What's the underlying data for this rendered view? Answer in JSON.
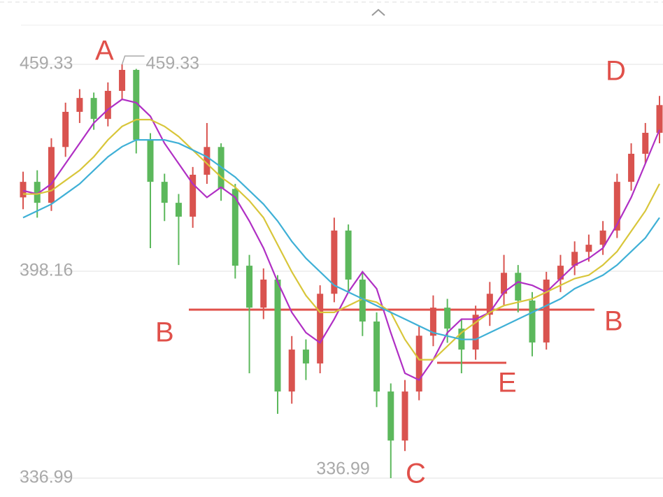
{
  "chart_data": {
    "type": "candlestick",
    "categories": [
      null,
      null,
      null,
      null,
      null,
      null,
      null,
      null,
      null,
      null,
      null,
      null,
      null,
      null,
      null,
      null,
      null,
      null,
      null,
      null,
      null,
      null,
      null,
      null,
      null,
      null,
      null,
      null,
      null,
      null,
      null,
      null,
      null,
      null,
      null,
      null,
      null,
      null,
      null,
      null,
      null,
      null,
      null,
      null,
      null,
      null
    ],
    "open": [
      420.0,
      424.6,
      418.4,
      434.9,
      445.3,
      449.4,
      443.2,
      451.5,
      457.7,
      437.0,
      424.6,
      418.4,
      414.3,
      426.7,
      434.9,
      422.5,
      399.8,
      387.4,
      395.7,
      362.6,
      375.0,
      370.9,
      391.5,
      410.2,
      395.7,
      383.3,
      362.6,
      348.1,
      362.6,
      379.1,
      387.4,
      381.2,
      375.0,
      385.3,
      391.5,
      397.7,
      389.5,
      377.1,
      395.7,
      399.8,
      403.9,
      406.0,
      410.2,
      424.6,
      432.9,
      439.1
    ],
    "high": [
      427.6,
      428,
      437.5,
      448,
      452,
      451,
      454,
      459.33,
      458,
      439,
      427,
      421,
      429,
      442,
      436,
      424,
      403,
      399,
      397,
      379,
      378,
      394,
      414,
      412,
      398,
      386,
      365,
      366,
      382,
      391,
      390,
      384,
      388,
      395,
      403,
      400,
      392,
      398,
      403,
      407,
      409,
      413,
      427,
      436,
      442,
      450
    ],
    "low": [
      416.5,
      414,
      416,
      432,
      442,
      440,
      441,
      449,
      433,
      405,
      413,
      400,
      411,
      424,
      419,
      396,
      368,
      384,
      356,
      359,
      366,
      368,
      389,
      392,
      379,
      358,
      336.99,
      345,
      360,
      376,
      377,
      368,
      372,
      382,
      388,
      386,
      373,
      375,
      392,
      397,
      401,
      403,
      408,
      422,
      430,
      436
    ],
    "close": [
      424.6,
      418.4,
      434.9,
      445.3,
      449.4,
      443.2,
      451.5,
      457.7,
      437.0,
      424.6,
      418.4,
      414.3,
      426.7,
      434.9,
      422.5,
      399.8,
      387.4,
      395.7,
      362.6,
      375.0,
      370.9,
      391.5,
      410.2,
      395.7,
      383.3,
      362.6,
      348.1,
      362.6,
      379.1,
      387.4,
      381.2,
      375.0,
      385.3,
      391.5,
      397.7,
      389.5,
      377.1,
      395.7,
      399.8,
      403.9,
      406.0,
      410.2,
      424.6,
      432.9,
      439.1,
      447.3
    ],
    "up_color": "#d9534f",
    "down_color": "#5cb85c",
    "lines": [
      {
        "color": "#b02fc4",
        "values": [
          422,
          421,
          424,
          430,
          436,
          442,
          446,
          449,
          448,
          444,
          436,
          430,
          424,
          420,
          423,
          420,
          413,
          405,
          395,
          386,
          380,
          377,
          384,
          392,
          398,
          393,
          380,
          368,
          366,
          372,
          380,
          384,
          384,
          386,
          392,
          395,
          394,
          392,
          396,
          400,
          402,
          405,
          412,
          420,
          430,
          440
        ]
      },
      {
        "color": "#d8c63a",
        "values": [
          421,
          421,
          422,
          425,
          428,
          432,
          437,
          441,
          443,
          443,
          441,
          438,
          434,
          430,
          426,
          423,
          419,
          414,
          406,
          398,
          391,
          386,
          386,
          388,
          390,
          389,
          386,
          378,
          372,
          372,
          376,
          380,
          383,
          386,
          388,
          389,
          390,
          392,
          394,
          396,
          397,
          400,
          404,
          410,
          416,
          424
        ]
      },
      {
        "color": "#3fb0d6",
        "values": [
          414,
          416,
          418,
          421,
          424,
          428,
          432,
          435,
          437,
          437,
          437,
          436,
          434,
          432,
          429,
          426,
          422,
          418,
          413,
          407,
          402,
          398,
          394,
          392,
          390,
          388,
          386,
          384,
          382,
          380,
          379,
          378,
          378,
          380,
          382,
          384,
          386,
          388,
          390,
          393,
          395,
          397,
          400,
          404,
          408,
          414
        ]
      }
    ],
    "ylim": [
      334.3,
      470.1
    ],
    "yticks": [
      459.33,
      398.16,
      336.99
    ],
    "grid": true,
    "reference_lines": [
      {
        "value": 386.8,
        "color": "#e0504a",
        "labels": [
          "B",
          "B"
        ]
      },
      {
        "value": 371.1,
        "color": "#e0504a",
        "labels": [
          "E"
        ]
      }
    ],
    "annotations": [
      "A",
      "C",
      "D"
    ]
  }
}
